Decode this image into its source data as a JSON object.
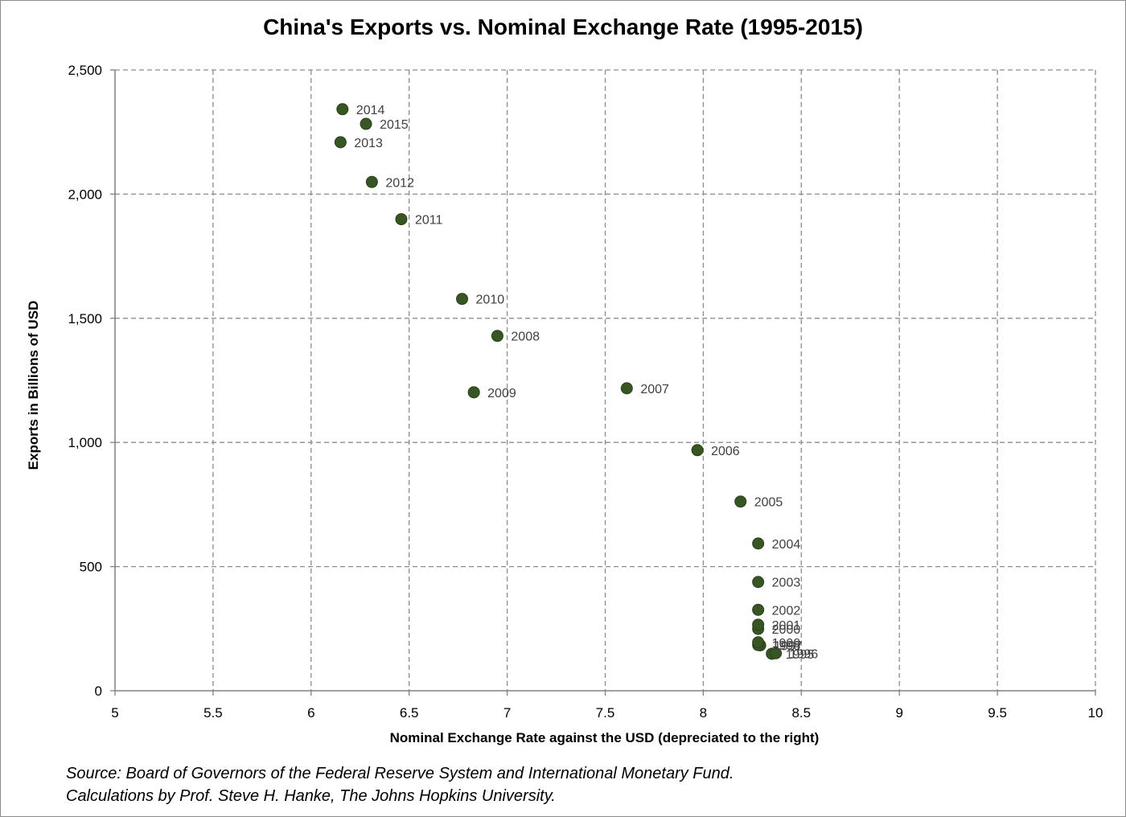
{
  "chart_data": {
    "type": "scatter",
    "title": "China's Exports vs. Nominal Exchange Rate (1995-2015)",
    "xlabel": "Nominal Exchange Rate against the USD (depreciated to the right)",
    "ylabel": "Exports in Billions of USD",
    "xlim": [
      5,
      10
    ],
    "ylim": [
      0,
      2500
    ],
    "xticks": [
      5,
      5.5,
      6,
      6.5,
      7,
      7.5,
      8,
      8.5,
      9,
      9.5,
      10
    ],
    "xtick_labels": [
      "5",
      "5.5",
      "6",
      "6.5",
      "7",
      "7.5",
      "8",
      "8.5",
      "9",
      "9.5",
      "10"
    ],
    "yticks": [
      0,
      500,
      1000,
      1500,
      2000,
      2500
    ],
    "ytick_labels": [
      "0",
      "500",
      "1,000",
      "1,500",
      "2,000",
      "2,500"
    ],
    "grid": true,
    "marker_color": "#375623",
    "points": [
      {
        "label": "1995",
        "x": 8.35,
        "y": 149
      },
      {
        "label": "1996",
        "x": 8.37,
        "y": 151
      },
      {
        "label": "1997",
        "x": 8.29,
        "y": 183
      },
      {
        "label": "1998",
        "x": 8.28,
        "y": 184
      },
      {
        "label": "1999",
        "x": 8.28,
        "y": 195
      },
      {
        "label": "2000",
        "x": 8.28,
        "y": 249
      },
      {
        "label": "2001",
        "x": 8.28,
        "y": 266
      },
      {
        "label": "2002",
        "x": 8.28,
        "y": 326
      },
      {
        "label": "2003",
        "x": 8.28,
        "y": 438
      },
      {
        "label": "2004",
        "x": 8.28,
        "y": 593
      },
      {
        "label": "2005",
        "x": 8.19,
        "y": 762
      },
      {
        "label": "2006",
        "x": 7.97,
        "y": 969
      },
      {
        "label": "2007",
        "x": 7.61,
        "y": 1218
      },
      {
        "label": "2008",
        "x": 6.95,
        "y": 1429
      },
      {
        "label": "2009",
        "x": 6.83,
        "y": 1202
      },
      {
        "label": "2010",
        "x": 6.77,
        "y": 1578
      },
      {
        "label": "2011",
        "x": 6.46,
        "y": 1899
      },
      {
        "label": "2012",
        "x": 6.31,
        "y": 2049
      },
      {
        "label": "2013",
        "x": 6.15,
        "y": 2209
      },
      {
        "label": "2014",
        "x": 6.16,
        "y": 2342
      },
      {
        "label": "2015",
        "x": 6.28,
        "y": 2283
      }
    ]
  },
  "source_line_1": "Source: Board of Governors of the Federal Reserve System and International Monetary Fund.",
  "source_line_2": "Calculations by Prof. Steve H. Hanke, The Johns Hopkins University."
}
